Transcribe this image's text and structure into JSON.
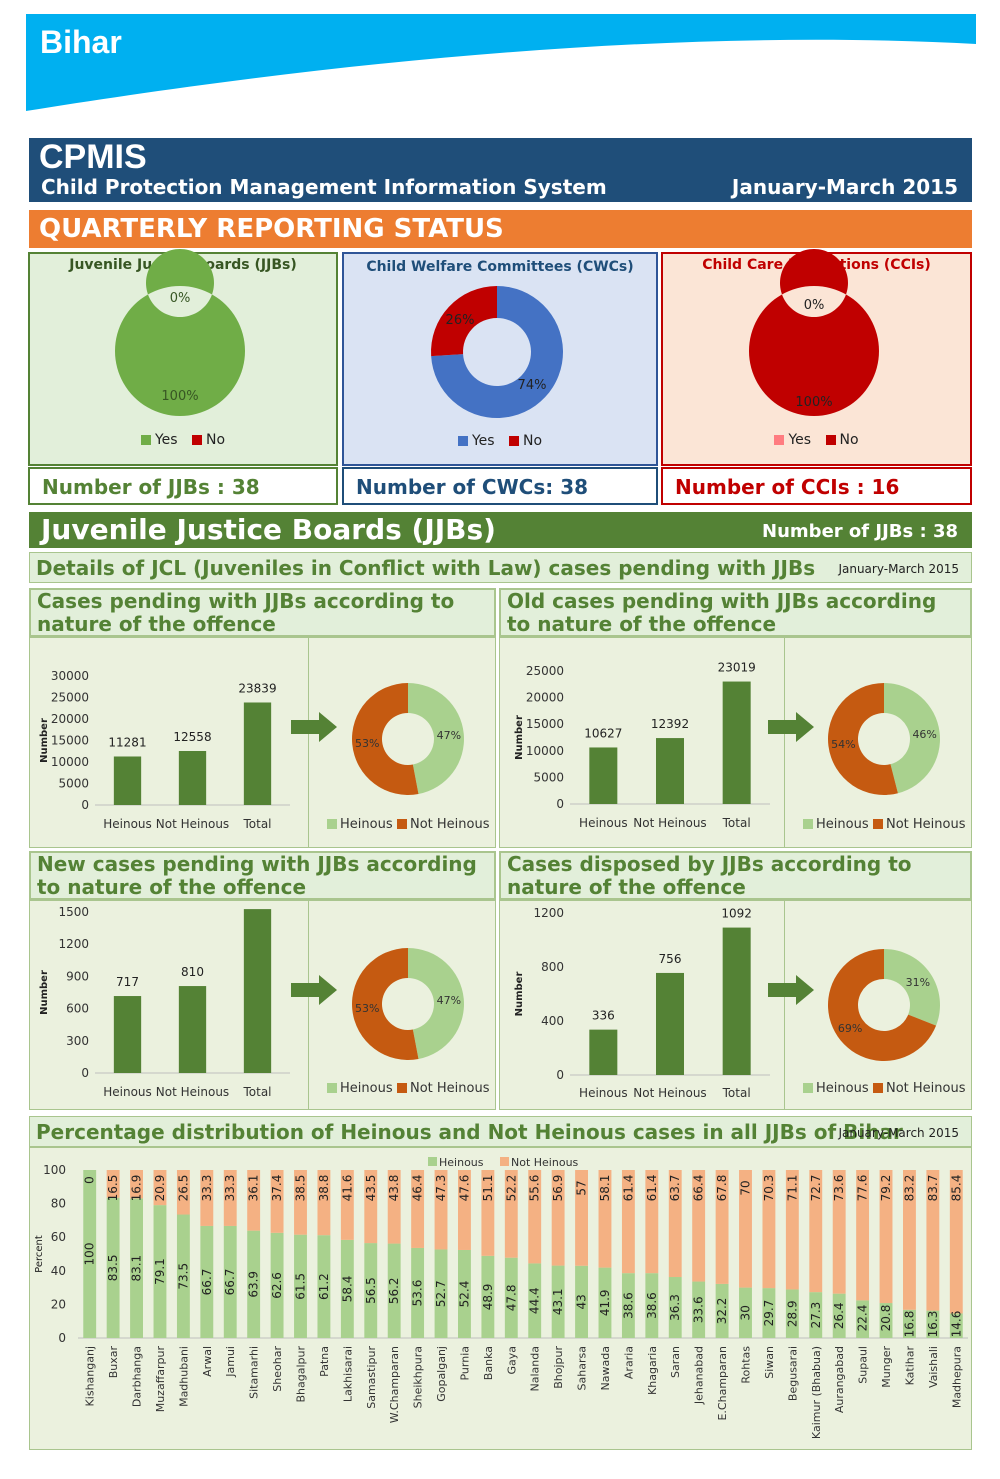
{
  "header": {
    "state": "Bihar",
    "cpmis": "CPMIS",
    "cpmis_full": "Child Protection Management Information System",
    "period": "January-March 2015",
    "section": "QUARTERLY REPORTING STATUS"
  },
  "status": {
    "jjb": {
      "title": "Juvenile Justice Boards (JJBs)",
      "yes_pct": 100,
      "no_pct": 0,
      "yes_label": "100%",
      "no_label": "0%",
      "count_label": "Number of JJBs : 38"
    },
    "cwc": {
      "title": "Child Welfare Committees (CWCs)",
      "yes_pct": 74,
      "no_pct": 26,
      "yes_label": "74%",
      "no_label": "26%",
      "count_label": "Number of CWCs: 38"
    },
    "cci": {
      "title": "Child Care Institutions (CCIs)",
      "yes_pct": 100,
      "no_pct": 0,
      "yes_label": "100%",
      "no_label": "0%",
      "count_label": "Number of CCIs : 16"
    },
    "legend_yes": "Yes",
    "legend_no": "No"
  },
  "colors": {
    "green_dark": "#548235",
    "green_yes": "#70ad47",
    "green_light": "#a9d18e",
    "orange_dark": "#c55a11",
    "orange_light": "#f4b183",
    "red": "#c00000",
    "blue": "#4472c4",
    "pink": "#ff7c80",
    "navy": "#1f4e79",
    "orange": "#ed7d31"
  },
  "jjbs": {
    "title": "Juvenile Justice Boards (JJBs)",
    "count_label": "Number of JJBs : 38",
    "details": "Details of JCL (Juveniles in Conflict with Law) cases pending with JJBs",
    "period": "January-March 2015",
    "ylabel": "Number",
    "legend_heinous": "Heinous",
    "legend_not_heinous": "Not Heinous"
  },
  "chart_data": [
    {
      "type": "bar",
      "title": "Cases pending with JJBs according to nature of the offence",
      "categories": [
        "Heinous",
        "Not Heinous",
        "Total"
      ],
      "values": [
        11281,
        12558,
        23839
      ],
      "ylabel": "Number",
      "ylim": [
        0,
        30000
      ],
      "yticks": [
        0,
        5000,
        10000,
        15000,
        20000,
        25000,
        30000
      ],
      "pie": {
        "type": "pie",
        "labels": [
          "Heinous",
          "Not Heinous"
        ],
        "values": [
          47,
          53
        ],
        "value_labels": [
          "47%",
          "53%"
        ]
      }
    },
    {
      "type": "bar",
      "title": "Old cases pending with JJBs according to nature of the offence",
      "categories": [
        "Heinous",
        "Not Heinous",
        "Total"
      ],
      "values": [
        10627,
        12392,
        23019
      ],
      "ylabel": "Number",
      "ylim": [
        0,
        25000
      ],
      "yticks": [
        0,
        5000,
        10000,
        15000,
        20000,
        25000
      ],
      "pie": {
        "type": "pie",
        "labels": [
          "Heinous",
          "Not Heinous"
        ],
        "values": [
          46,
          54
        ],
        "value_labels": [
          "46%",
          "54%"
        ]
      }
    },
    {
      "type": "bar",
      "title": "New cases pending with JJBs according to nature of the offence",
      "categories": [
        "Heinous",
        "Not Heinous",
        "Total"
      ],
      "values": [
        717,
        810,
        1527
      ],
      "data_labels": [
        "717",
        "810",
        ""
      ],
      "ylabel": "Number",
      "ylim": [
        0,
        1500
      ],
      "yticks": [
        0,
        300,
        600,
        900,
        1200,
        1500
      ],
      "pie": {
        "type": "pie",
        "labels": [
          "Heinous",
          "Not Heinous"
        ],
        "values": [
          47,
          53
        ],
        "value_labels": [
          "47%",
          "53%"
        ]
      }
    },
    {
      "type": "bar",
      "title": "Cases disposed by JJBs  according to nature of the offence",
      "categories": [
        "Heinous",
        "Not Heinous",
        "Total"
      ],
      "values": [
        336,
        756,
        1092
      ],
      "ylabel": "Number",
      "ylim": [
        0,
        1200
      ],
      "yticks": [
        0,
        400,
        800,
        1200
      ],
      "pie": {
        "type": "pie",
        "labels": [
          "Heinous",
          "Not Heinous"
        ],
        "values": [
          31,
          69
        ],
        "value_labels": [
          "31%",
          "69%"
        ]
      }
    },
    {
      "type": "bar",
      "stacked": true,
      "title": "Percentage distribution of Heinous and Not Heinous cases in all JJBs of Bihar",
      "period": "January-March 2015",
      "ylabel": "Percent",
      "ylim": [
        0,
        100
      ],
      "yticks": [
        0,
        20,
        40,
        60,
        80,
        100
      ],
      "legend": "top",
      "categories": [
        "Kishanganj",
        "Buxar",
        "Darbhanga",
        "Muzaffarpur",
        "Madhubani",
        "Arwal",
        "Jamui",
        "Sitamarhi",
        "Sheohar",
        "Bhagalpur",
        "Patna",
        "Lakhisarai",
        "Samastipur",
        "W.Champaran",
        "Sheikhpura",
        "Gopalganj",
        "Purnia",
        "Banka",
        "Gaya",
        "Nalanda",
        "Bhojpur",
        "Saharsa",
        "Nawada",
        "Araria",
        "Khagaria",
        "Saran",
        "Jehanabad",
        "E.Champaran",
        "Rohtas",
        "Siwan",
        "Begusarai",
        "Kaimur (Bhabua)",
        "Aurangabad",
        "Supaul",
        "Munger",
        "Katihar",
        "Vaishali",
        "Madhepura"
      ],
      "series": [
        {
          "name": "Heinous",
          "values": [
            100,
            83.5,
            83.1,
            79.1,
            73.5,
            66.7,
            66.7,
            63.9,
            62.6,
            61.5,
            61.2,
            58.4,
            56.5,
            56.2,
            53.6,
            52.7,
            52.4,
            48.9,
            47.8,
            44.4,
            43.1,
            43,
            41.9,
            38.6,
            38.6,
            36.3,
            33.6,
            32.2,
            30,
            29.7,
            28.9,
            27.3,
            26.4,
            22.4,
            20.8,
            16.8,
            16.3,
            14.6
          ]
        },
        {
          "name": "Not Heinous",
          "values": [
            0,
            16.5,
            16.9,
            20.9,
            26.5,
            33.3,
            33.3,
            36.1,
            37.4,
            38.5,
            38.8,
            41.6,
            43.5,
            43.8,
            46.4,
            47.3,
            47.6,
            51.1,
            52.2,
            55.6,
            56.9,
            57,
            58.1,
            61.4,
            61.4,
            63.7,
            66.4,
            67.8,
            70,
            70.3,
            71.1,
            72.7,
            73.6,
            77.6,
            79.2,
            83.2,
            83.7,
            85.4
          ]
        }
      ]
    }
  ]
}
